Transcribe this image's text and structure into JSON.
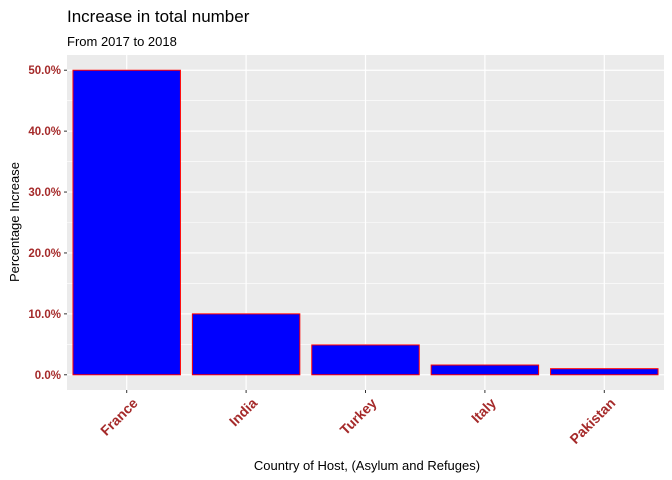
{
  "chart_data": {
    "type": "bar",
    "title": "Increase in total number",
    "subtitle": "From 2017 to 2018",
    "xlabel": "Country of Host, (Asylum and Refuges)",
    "ylabel": "Percentage Increase",
    "categories": [
      "France",
      "India",
      "Turkey",
      "Italy",
      "Pakistan"
    ],
    "values": [
      50.0,
      10.0,
      4.9,
      1.6,
      1.0
    ],
    "ylim": [
      -2.5,
      52.5
    ],
    "yticks": [
      0,
      10,
      20,
      30,
      40,
      50
    ],
    "ytick_labels": [
      "0.0%",
      "10.0%",
      "20.0%",
      "30.0%",
      "40.0%",
      "50.0%"
    ],
    "grid": true,
    "legend": "none",
    "colors": {
      "bar_fill": "#0000ff",
      "bar_outline": "#ff0000",
      "panel": "#ebebeb",
      "grid": "#ffffff",
      "tick_label": "#a52a2a"
    }
  }
}
